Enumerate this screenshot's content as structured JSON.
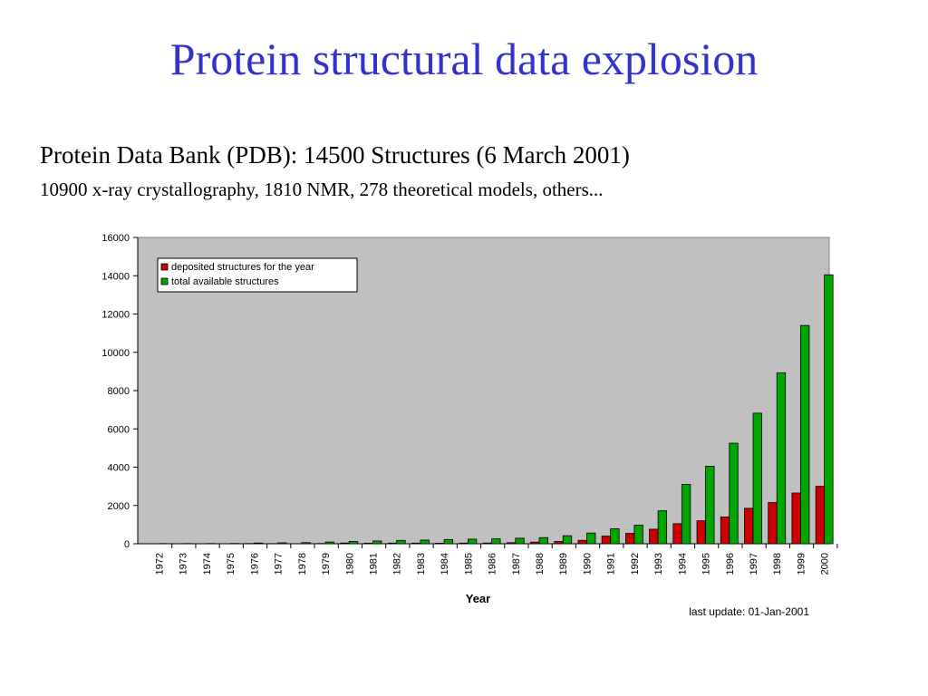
{
  "slide": {
    "title": "Protein structural data explosion",
    "title_color": "#3333cc",
    "line1": "Protein Data Bank (PDB): 14500 Structures (6 March 2001)",
    "line2": "10900 x-ray crystallography, 1810 NMR, 278 theoretical models, others..."
  },
  "chart_data": {
    "type": "bar",
    "title": "",
    "xlabel": "Year",
    "ylabel": "",
    "ylim": [
      0,
      16000
    ],
    "yticks": [
      0,
      2000,
      4000,
      6000,
      8000,
      10000,
      12000,
      14000,
      16000
    ],
    "grid": false,
    "legend_position": "top-left",
    "plot_background": "#c0c0c0",
    "annotation": "last update: 01-Jan-2001",
    "categories": [
      "1972",
      "1973",
      "1974",
      "1975",
      "1976",
      "1977",
      "1978",
      "1979",
      "1980",
      "1981",
      "1982",
      "1983",
      "1984",
      "1985",
      "1986",
      "1987",
      "1988",
      "1989",
      "1990",
      "1991",
      "1992",
      "1993",
      "1994",
      "1995",
      "1996",
      "1997",
      "1998",
      "1999",
      "2000"
    ],
    "series": [
      {
        "name": "deposited structures for the year",
        "color": "#cc0000",
        "values": [
          1,
          2,
          1,
          3,
          13,
          9,
          6,
          14,
          40,
          30,
          35,
          32,
          30,
          35,
          40,
          55,
          85,
          120,
          180,
          400,
          540,
          760,
          1050,
          1200,
          1400,
          1850,
          2150,
          2650,
          3000
        ]
      },
      {
        "name": "total available structures",
        "color": "#00a600",
        "values": [
          10,
          12,
          13,
          16,
          40,
          50,
          60,
          90,
          120,
          145,
          175,
          190,
          220,
          240,
          255,
          290,
          320,
          420,
          560,
          780,
          970,
          1720,
          3100,
          4050,
          5250,
          6820,
          8930,
          11400,
          14050
        ]
      }
    ]
  }
}
